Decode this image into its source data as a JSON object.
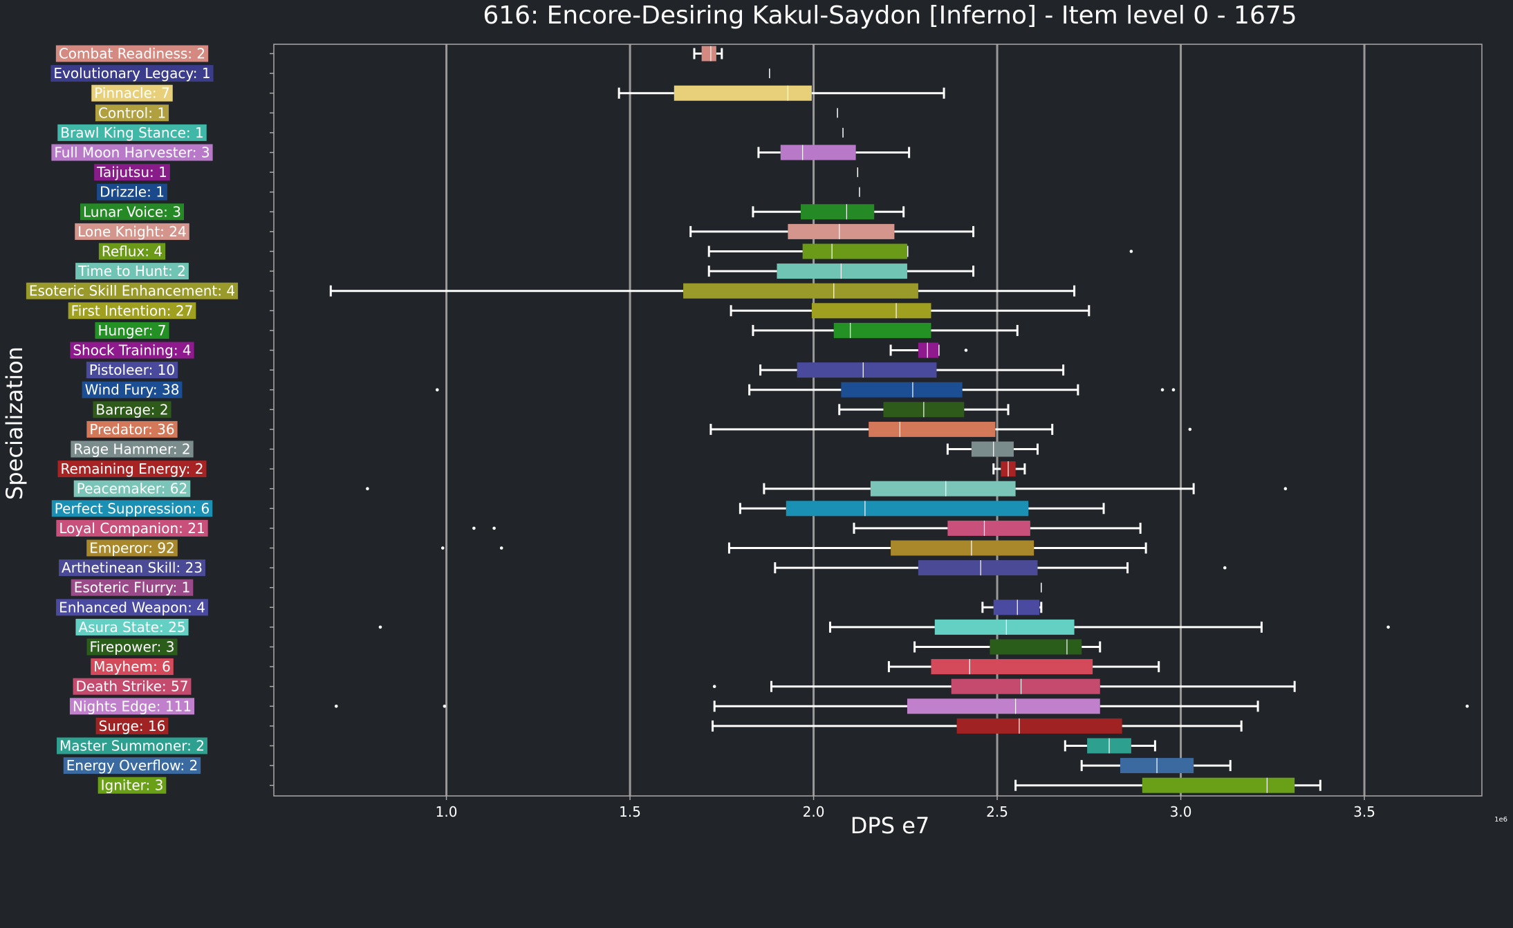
{
  "chart_data": {
    "type": "box",
    "title": "616: Encore-Desiring Kakul-Saydon [Inferno] - Item level 0 - 1675",
    "xlabel": "DPS e7",
    "ylabel": "Specialization",
    "offset_label": "1e6",
    "xlim": [
      0.53,
      3.82
    ],
    "xticks": [
      1.0,
      1.5,
      2.0,
      2.5,
      3.0,
      3.5
    ],
    "xtick_labels": [
      "1.0",
      "1.5",
      "2.0",
      "2.5",
      "3.0",
      "3.5"
    ],
    "grid": "vertical",
    "colors": {
      "background": "#212428",
      "axis": "#aaaaaa",
      "grid": "#999999",
      "whisker": "#ffffff",
      "text": "#ffffff"
    },
    "series": [
      {
        "label": "Combat Readiness: 2",
        "color": "#d48a80",
        "min": 1.675,
        "q1": 1.695,
        "median": 1.72,
        "q3": 1.735,
        "max": 1.75,
        "outliers": []
      },
      {
        "label": "Evolutionary Legacy: 1",
        "color": "#3c3c8c",
        "min": 1.88,
        "q1": 1.88,
        "median": 1.88,
        "q3": 1.88,
        "max": 1.88,
        "outliers": []
      },
      {
        "label": "Pinnacle: 7",
        "color": "#e8d07a",
        "min": 1.47,
        "q1": 1.62,
        "median": 1.93,
        "q3": 1.995,
        "max": 2.355,
        "outliers": []
      },
      {
        "label": "Control: 1",
        "color": "#b0a040",
        "min": 2.065,
        "q1": 2.065,
        "median": 2.065,
        "q3": 2.065,
        "max": 2.065,
        "outliers": []
      },
      {
        "label": "Brawl King Stance: 1",
        "color": "#40b8a8",
        "min": 2.08,
        "q1": 2.08,
        "median": 2.08,
        "q3": 2.08,
        "max": 2.08,
        "outliers": []
      },
      {
        "label": "Full Moon Harvester: 3",
        "color": "#b87ac8",
        "min": 1.85,
        "q1": 1.91,
        "median": 1.97,
        "q3": 2.115,
        "max": 2.26,
        "outliers": []
      },
      {
        "label": "Taijutsu: 1",
        "color": "#881c88",
        "min": 2.12,
        "q1": 2.12,
        "median": 2.12,
        "q3": 2.12,
        "max": 2.12,
        "outliers": []
      },
      {
        "label": "Drizzle: 1",
        "color": "#1a4a8c",
        "min": 2.125,
        "q1": 2.125,
        "median": 2.125,
        "q3": 2.125,
        "max": 2.125,
        "outliers": []
      },
      {
        "label": "Lunar Voice: 3",
        "color": "#258a25",
        "min": 1.835,
        "q1": 1.965,
        "median": 2.09,
        "q3": 2.165,
        "max": 2.245,
        "outliers": []
      },
      {
        "label": "Lone Knight: 24",
        "color": "#d4968c",
        "min": 1.665,
        "q1": 1.93,
        "median": 2.07,
        "q3": 2.22,
        "max": 2.435,
        "outliers": []
      },
      {
        "label": "Reflux: 4",
        "color": "#6a9a18",
        "min": 1.715,
        "q1": 1.97,
        "median": 2.05,
        "q3": 2.255,
        "max": 2.255,
        "outliers": [
          2.865
        ]
      },
      {
        "label": "Time to Hunt: 2",
        "color": "#70c4b4",
        "min": 1.715,
        "q1": 1.9,
        "median": 2.075,
        "q3": 2.255,
        "max": 2.435,
        "outliers": []
      },
      {
        "label": "Esoteric Skill Enhancement: 4",
        "color": "#9a9a2a",
        "min": 0.685,
        "q1": 1.645,
        "median": 2.055,
        "q3": 2.285,
        "max": 2.71,
        "outliers": []
      },
      {
        "label": "First Intention: 27",
        "color": "#a0a020",
        "min": 1.775,
        "q1": 1.995,
        "median": 2.225,
        "q3": 2.32,
        "max": 2.75,
        "outliers": []
      },
      {
        "label": "Hunger: 7",
        "color": "#249124",
        "min": 1.835,
        "q1": 2.055,
        "median": 2.1,
        "q3": 2.32,
        "max": 2.555,
        "outliers": []
      },
      {
        "label": "Shock Training: 4",
        "color": "#8e1a8e",
        "min": 2.21,
        "q1": 2.285,
        "median": 2.31,
        "q3": 2.34,
        "max": 2.34,
        "outliers": [
          2.415
        ]
      },
      {
        "label": "Pistoleer: 10",
        "color": "#4a4a9c",
        "min": 1.855,
        "q1": 1.955,
        "median": 2.135,
        "q3": 2.335,
        "max": 2.68,
        "outliers": []
      },
      {
        "label": "Wind Fury: 38",
        "color": "#1c4e94",
        "min": 1.825,
        "q1": 2.075,
        "median": 2.27,
        "q3": 2.405,
        "max": 2.72,
        "outliers": [
          0.975,
          2.95,
          2.98
        ]
      },
      {
        "label": "Barrage: 2",
        "color": "#2e5a1a",
        "min": 2.07,
        "q1": 2.19,
        "median": 2.3,
        "q3": 2.41,
        "max": 2.53,
        "outliers": []
      },
      {
        "label": "Predator: 36",
        "color": "#d4785a",
        "min": 1.72,
        "q1": 2.15,
        "median": 2.235,
        "q3": 2.495,
        "max": 2.65,
        "outliers": [
          3.025
        ]
      },
      {
        "label": "Rage Hammer: 2",
        "color": "#7a8c8c",
        "min": 2.365,
        "q1": 2.43,
        "median": 2.49,
        "q3": 2.545,
        "max": 2.61,
        "outliers": []
      },
      {
        "label": "Remaining Energy: 2",
        "color": "#a82424",
        "min": 2.49,
        "q1": 2.51,
        "median": 2.53,
        "q3": 2.55,
        "max": 2.575,
        "outliers": []
      },
      {
        "label": "Peacemaker: 62",
        "color": "#7ac4b8",
        "min": 1.865,
        "q1": 2.155,
        "median": 2.36,
        "q3": 2.55,
        "max": 3.035,
        "outliers": [
          0.785,
          3.285
        ]
      },
      {
        "label": "Perfect Suppression: 6",
        "color": "#1a90b4",
        "min": 1.8,
        "q1": 1.925,
        "median": 2.14,
        "q3": 2.585,
        "max": 2.79,
        "outliers": []
      },
      {
        "label": "Loyal Companion: 21",
        "color": "#c8507a",
        "min": 2.11,
        "q1": 2.365,
        "median": 2.465,
        "q3": 2.59,
        "max": 2.89,
        "outliers": [
          1.075,
          1.13
        ]
      },
      {
        "label": "Emperor: 92",
        "color": "#a8882a",
        "min": 1.77,
        "q1": 2.21,
        "median": 2.43,
        "q3": 2.6,
        "max": 2.905,
        "outliers": [
          0.99,
          1.15
        ]
      },
      {
        "label": "Arthetinean Skill: 23",
        "color": "#4a4a96",
        "min": 1.895,
        "q1": 2.285,
        "median": 2.455,
        "q3": 2.61,
        "max": 2.855,
        "outliers": [
          3.12
        ]
      },
      {
        "label": "Esoteric Flurry: 1",
        "color": "#9a4a88",
        "min": 2.62,
        "q1": 2.62,
        "median": 2.62,
        "q3": 2.62,
        "max": 2.62,
        "outliers": []
      },
      {
        "label": "Enhanced Weapon: 4",
        "color": "#4a4aa0",
        "min": 2.46,
        "q1": 2.49,
        "median": 2.555,
        "q3": 2.615,
        "max": 2.62,
        "outliers": []
      },
      {
        "label": "Asura State: 25",
        "color": "#64d0c4",
        "min": 2.045,
        "q1": 2.33,
        "median": 2.525,
        "q3": 2.71,
        "max": 3.22,
        "outliers": [
          0.82,
          3.565
        ]
      },
      {
        "label": "Firepower: 3",
        "color": "#2a5c1a",
        "min": 2.275,
        "q1": 2.48,
        "median": 2.69,
        "q3": 2.73,
        "max": 2.78,
        "outliers": []
      },
      {
        "label": "Mayhem: 6",
        "color": "#d44a5a",
        "min": 2.205,
        "q1": 2.32,
        "median": 2.425,
        "q3": 2.76,
        "max": 2.94,
        "outliers": []
      },
      {
        "label": "Death Strike: 57",
        "color": "#c44a6e",
        "min": 1.885,
        "q1": 2.375,
        "median": 2.565,
        "q3": 2.78,
        "max": 3.31,
        "outliers": [
          1.73
        ]
      },
      {
        "label": "Nights Edge: 111",
        "color": "#c080cc",
        "min": 1.73,
        "q1": 2.255,
        "median": 2.55,
        "q3": 2.78,
        "max": 3.21,
        "outliers": [
          0.7,
          0.995,
          3.78
        ]
      },
      {
        "label": "Surge: 16",
        "color": "#a02222",
        "min": 1.725,
        "q1": 2.39,
        "median": 2.56,
        "q3": 2.84,
        "max": 3.165,
        "outliers": []
      },
      {
        "label": "Master Summoner: 2",
        "color": "#2ea090",
        "min": 2.685,
        "q1": 2.745,
        "median": 2.805,
        "q3": 2.865,
        "max": 2.93,
        "outliers": []
      },
      {
        "label": "Energy Overflow: 2",
        "color": "#3a6aa0",
        "min": 2.73,
        "q1": 2.835,
        "median": 2.935,
        "q3": 3.035,
        "max": 3.135,
        "outliers": []
      },
      {
        "label": "Igniter: 3",
        "color": "#6aa018",
        "min": 2.55,
        "q1": 2.895,
        "median": 3.235,
        "q3": 3.31,
        "max": 3.38,
        "outliers": []
      }
    ]
  }
}
